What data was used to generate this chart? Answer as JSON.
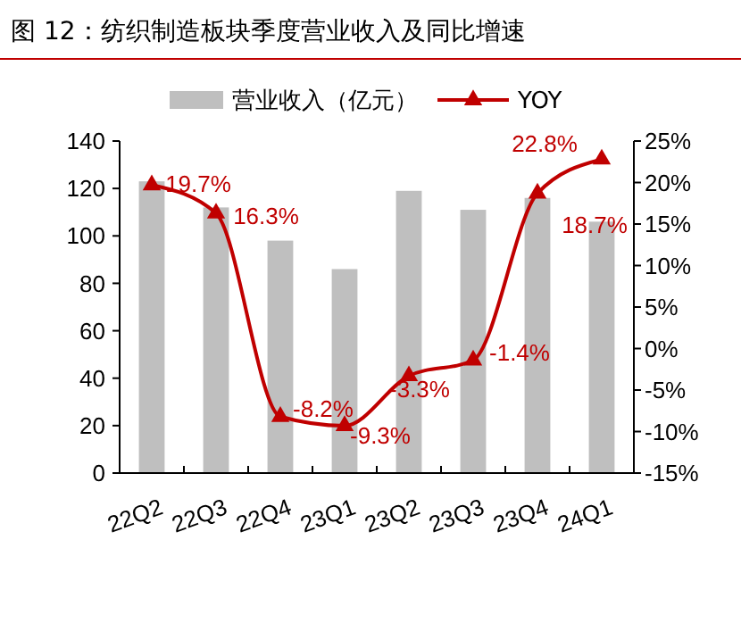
{
  "chart_data": {
    "type": "bar",
    "title": "图 12：纺织制造板块季度营业收入及同比增速",
    "categories": [
      "22Q2",
      "22Q3",
      "22Q4",
      "23Q1",
      "23Q2",
      "23Q3",
      "23Q4",
      "24Q1"
    ],
    "series": [
      {
        "name": "营业收入（亿元）",
        "color": "#bfbfbf",
        "values": [
          123,
          112,
          98,
          86,
          119,
          111,
          116,
          106
        ]
      },
      {
        "name": "YOY",
        "type": "line",
        "axis": "y2",
        "color": "#c00000",
        "values": [
          19.7,
          16.3,
          -8.2,
          -9.3,
          -3.3,
          -1.4,
          18.7,
          22.8
        ],
        "value_labels": [
          "19.7%",
          "16.3%",
          "-8.2%",
          "-9.3%",
          "-3.3%",
          "-1.4%",
          "18.7%",
          "22.8%"
        ]
      }
    ],
    "ylim": [
      0,
      140
    ],
    "yticks": [
      0,
      20,
      40,
      60,
      80,
      100,
      120,
      140
    ],
    "y2lim": [
      -15,
      25
    ],
    "y2ticks": [
      {
        "value": -15,
        "label": "-15%"
      },
      {
        "value": -10,
        "label": "-10%"
      },
      {
        "value": -5,
        "label": "-5%"
      },
      {
        "value": 0,
        "label": "0%"
      },
      {
        "value": 5,
        "label": "5%"
      },
      {
        "value": 10,
        "label": "10%"
      },
      {
        "value": 15,
        "label": "15%"
      },
      {
        "value": 20,
        "label": "20%"
      },
      {
        "value": 25,
        "label": "25%"
      }
    ],
    "legend": "top",
    "marker": "triangle",
    "grid": false
  }
}
